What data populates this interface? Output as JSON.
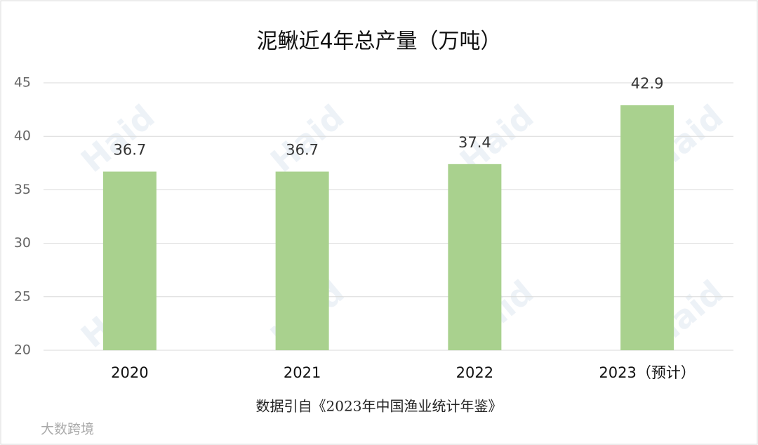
{
  "chart_data": {
    "type": "bar",
    "title": "泥鳅近4年总产量（万吨）",
    "categories": [
      "2020",
      "2021",
      "2022",
      "2023（预计）"
    ],
    "values": [
      36.7,
      36.7,
      37.4,
      42.9
    ],
    "color": "#a9d18e",
    "ylim": [
      20,
      45
    ],
    "yticks": [
      20,
      25,
      30,
      35,
      40,
      45
    ],
    "grid": true,
    "source": "数据引自《2023年中国渔业统计年鉴》",
    "watermark": "Haid",
    "corner_watermark": "大数跨境"
  }
}
